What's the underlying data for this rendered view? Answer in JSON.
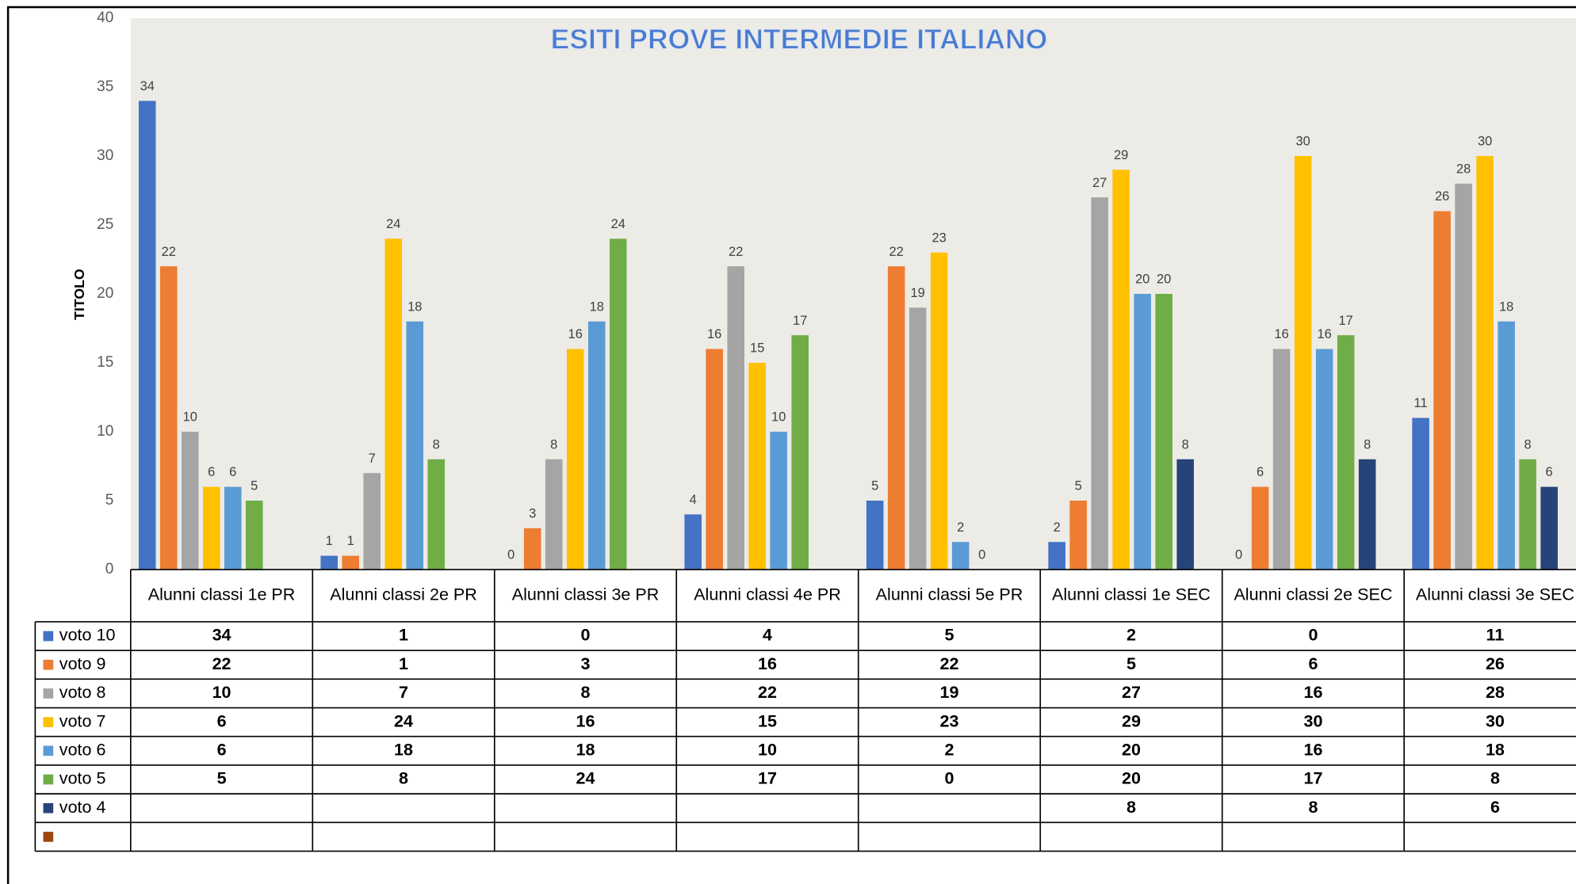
{
  "chart_data": {
    "type": "bar",
    "title": "ESITI PROVE INTERMEDIE ITALIANO",
    "y_label": "TITOLO",
    "categories": [
      "Alunni classi 1e PR",
      "Alunni classi 2e PR",
      "Alunni classi 3e PR",
      "Alunni classi 4e PR",
      "Alunni classi 5e PR",
      "Alunni classi 1e SEC",
      "Alunni classi 2e SEC",
      "Alunni classi 3e SEC"
    ],
    "ylim": [
      0,
      40
    ],
    "yticks": [
      0,
      5,
      10,
      15,
      20,
      25,
      30,
      35,
      40
    ],
    "data_table": true,
    "series": [
      {
        "name": "voto 10",
        "color": "#4472c4",
        "values": [
          34,
          1,
          0,
          4,
          5,
          2,
          0,
          11
        ]
      },
      {
        "name": "voto 9",
        "color": "#ed7d31",
        "values": [
          22,
          1,
          3,
          16,
          22,
          5,
          6,
          26
        ]
      },
      {
        "name": "voto 8",
        "color": "#a5a5a5",
        "values": [
          10,
          7,
          8,
          22,
          19,
          27,
          16,
          28
        ]
      },
      {
        "name": "voto 7",
        "color": "#ffc000",
        "values": [
          6,
          24,
          16,
          15,
          23,
          29,
          30,
          30
        ]
      },
      {
        "name": "voto 6",
        "color": "#5b9bd5",
        "values": [
          6,
          18,
          18,
          10,
          2,
          20,
          16,
          18
        ]
      },
      {
        "name": "voto 5",
        "color": "#70ad47",
        "values": [
          5,
          8,
          24,
          17,
          0,
          20,
          17,
          8
        ]
      },
      {
        "name": "voto 4",
        "color": "#264478",
        "values": [
          null,
          null,
          null,
          null,
          null,
          8,
          8,
          6
        ]
      },
      {
        "name": null,
        "color": "#9e480e",
        "values": [
          null,
          null,
          null,
          null,
          null,
          null,
          null,
          null
        ]
      }
    ]
  }
}
